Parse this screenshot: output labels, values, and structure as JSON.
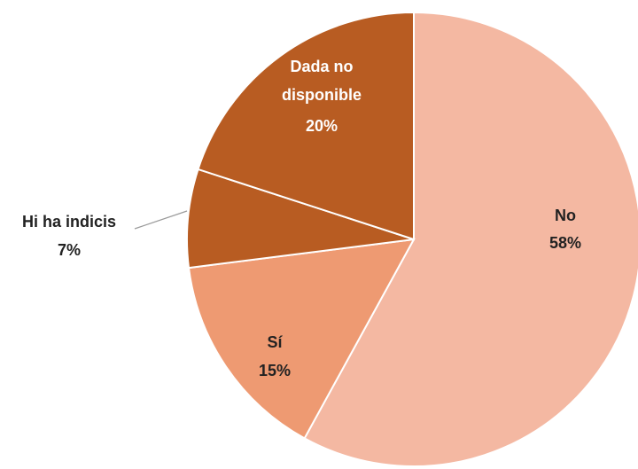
{
  "chart_data": {
    "type": "pie",
    "slices": [
      {
        "label": "No",
        "value": 58,
        "value_label": "58%",
        "color": "#F4B8A2"
      },
      {
        "label": "Sí",
        "value": 15,
        "value_label": "15%",
        "color": "#EE9A72"
      },
      {
        "label": "Hi ha indicis",
        "value": 7,
        "value_label": "7%",
        "color": "#B85C22"
      },
      {
        "label_lines": [
          "Dada no",
          "disponible"
        ],
        "value": 20,
        "value_label": "20%",
        "color": "#B85C22"
      }
    ],
    "start_angle": "12 o'clock",
    "direction": "clockwise",
    "legend": "none",
    "data_labels": "category and percentage"
  }
}
